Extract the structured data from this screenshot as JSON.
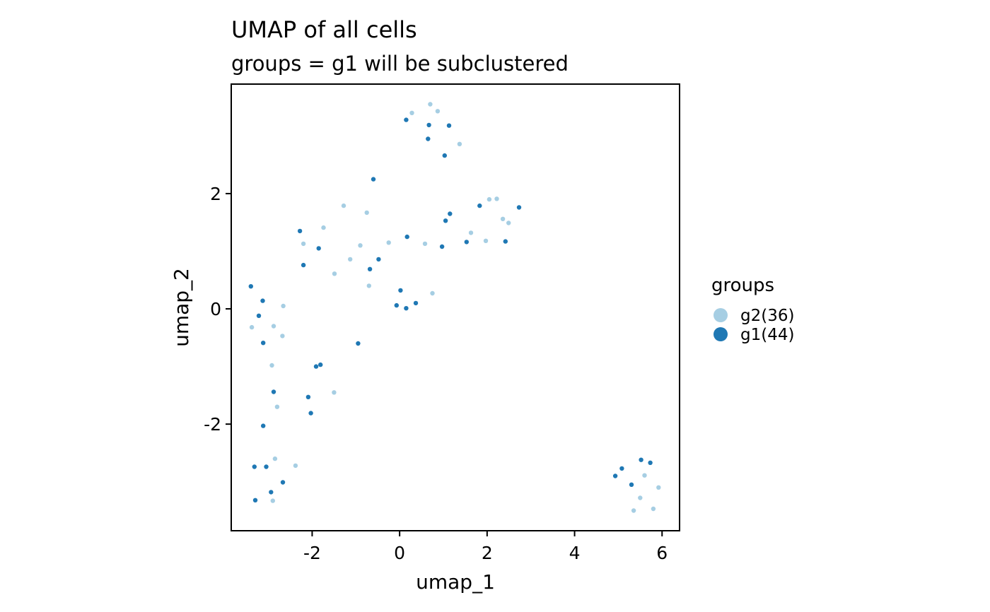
{
  "chart_data": {
    "type": "scatter",
    "title": "UMAP of all cells",
    "subtitle": "groups = g1 will be subclustered",
    "xlabel": "umap_1",
    "ylabel": "umap_2",
    "xlim": [
      -3.85,
      6.4
    ],
    "ylim": [
      -3.85,
      3.9
    ],
    "x_ticks": [
      -2,
      0,
      2,
      4,
      6
    ],
    "x_tick_labels": [
      "-2",
      "0",
      "2",
      "4",
      "6"
    ],
    "y_ticks": [
      -2,
      0,
      2
    ],
    "y_tick_labels": [
      "-2",
      "0",
      "2"
    ],
    "grid": false,
    "legend": {
      "title": "groups",
      "position": "right",
      "entries": [
        {
          "key": "g2",
          "label": "g2(36)",
          "color": "#a6cee3"
        },
        {
          "key": "g1",
          "label": "g1(44)",
          "color": "#1f78b4"
        }
      ]
    },
    "series": [
      {
        "key": "g2",
        "color": "#a6cee3",
        "points": [
          [
            0.7,
            3.55
          ],
          [
            0.28,
            3.4
          ],
          [
            0.87,
            3.43
          ],
          [
            1.37,
            2.86
          ],
          [
            -1.28,
            1.79
          ],
          [
            -0.75,
            1.67
          ],
          [
            -1.74,
            1.41
          ],
          [
            -2.2,
            1.13
          ],
          [
            -0.9,
            1.1
          ],
          [
            -0.25,
            1.15
          ],
          [
            0.58,
            1.13
          ],
          [
            -1.13,
            0.86
          ],
          [
            -1.49,
            0.61
          ],
          [
            -0.7,
            0.4
          ],
          [
            0.75,
            0.27
          ],
          [
            1.63,
            1.32
          ],
          [
            1.97,
            1.18
          ],
          [
            2.05,
            1.9
          ],
          [
            2.22,
            1.91
          ],
          [
            2.36,
            1.56
          ],
          [
            2.49,
            1.49
          ],
          [
            -2.66,
            0.05
          ],
          [
            -3.38,
            -0.32
          ],
          [
            -2.88,
            -0.3
          ],
          [
            -2.68,
            -0.47
          ],
          [
            -2.92,
            -0.98
          ],
          [
            -2.8,
            -1.7
          ],
          [
            -1.5,
            -1.45
          ],
          [
            -2.85,
            -2.6
          ],
          [
            -2.38,
            -2.72
          ],
          [
            -2.9,
            -3.33
          ],
          [
            5.6,
            -2.89
          ],
          [
            5.5,
            -3.28
          ],
          [
            5.35,
            -3.5
          ],
          [
            5.8,
            -3.47
          ],
          [
            5.92,
            -3.1
          ]
        ]
      },
      {
        "key": "g1",
        "color": "#1f78b4",
        "points": [
          [
            0.15,
            3.28
          ],
          [
            0.67,
            3.19
          ],
          [
            1.13,
            3.18
          ],
          [
            0.65,
            2.95
          ],
          [
            1.03,
            2.66
          ],
          [
            -0.6,
            2.25
          ],
          [
            1.83,
            1.79
          ],
          [
            2.73,
            1.76
          ],
          [
            1.15,
            1.65
          ],
          [
            1.05,
            1.53
          ],
          [
            -2.28,
            1.35
          ],
          [
            0.17,
            1.25
          ],
          [
            1.53,
            1.16
          ],
          [
            2.42,
            1.17
          ],
          [
            -1.85,
            1.05
          ],
          [
            0.97,
            1.08
          ],
          [
            -0.48,
            0.86
          ],
          [
            -2.2,
            0.76
          ],
          [
            -0.68,
            0.69
          ],
          [
            -3.4,
            0.39
          ],
          [
            0.02,
            0.32
          ],
          [
            -3.13,
            0.14
          ],
          [
            -0.07,
            0.06
          ],
          [
            0.15,
            0.01
          ],
          [
            0.37,
            0.1
          ],
          [
            -3.22,
            -0.12
          ],
          [
            -3.12,
            -0.59
          ],
          [
            -0.95,
            -0.6
          ],
          [
            -1.91,
            -1.0
          ],
          [
            -1.81,
            -0.97
          ],
          [
            -2.88,
            -1.44
          ],
          [
            -2.09,
            -1.53
          ],
          [
            -2.03,
            -1.81
          ],
          [
            -3.12,
            -2.03
          ],
          [
            -3.32,
            -2.74
          ],
          [
            -3.05,
            -2.74
          ],
          [
            -2.67,
            -3.01
          ],
          [
            -2.94,
            -3.18
          ],
          [
            -3.3,
            -3.32
          ],
          [
            5.08,
            -2.77
          ],
          [
            4.93,
            -2.9
          ],
          [
            5.52,
            -2.62
          ],
          [
            5.73,
            -2.67
          ],
          [
            5.3,
            -3.05
          ]
        ]
      }
    ]
  }
}
